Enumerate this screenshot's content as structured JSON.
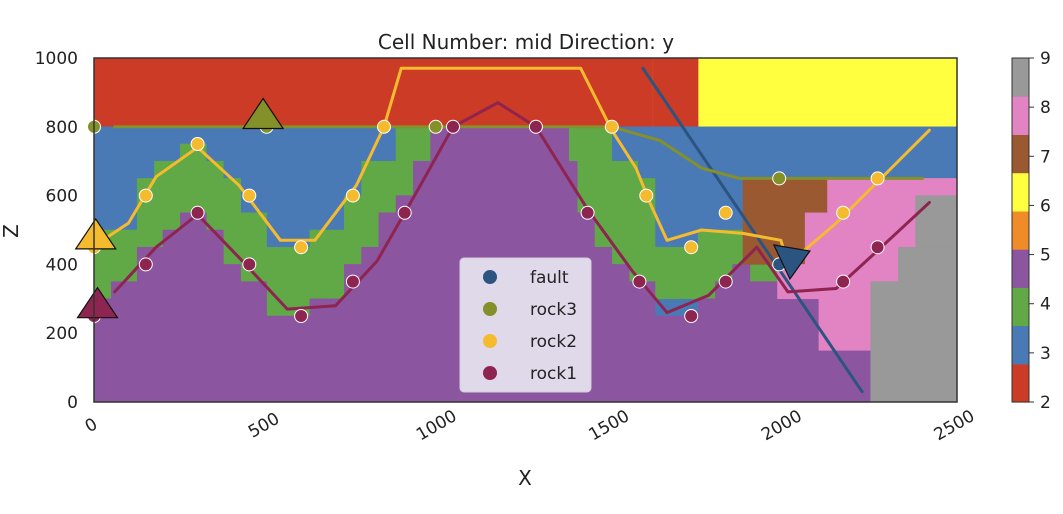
{
  "chart_data": {
    "type": "heatmap",
    "title": "Cell Number: mid Direction: y",
    "xlabel": "X",
    "ylabel": "Z",
    "xlim": [
      0,
      2500
    ],
    "ylim": [
      0,
      1000
    ],
    "x_ticks": [
      "0",
      "500",
      "1000",
      "1500",
      "2000",
      "2500"
    ],
    "y_ticks": [
      "0",
      "200",
      "400",
      "600",
      "800",
      "1000"
    ],
    "grid": false,
    "legend_position": "lower center",
    "colorbar": {
      "ticks": [
        "2",
        "3",
        "4",
        "5",
        "6",
        "7",
        "8",
        "9"
      ],
      "colors": [
        "#cc3b26",
        "#4a7ab5",
        "#61a847",
        "#8c55a0",
        "#f08c28",
        "#ffff40",
        "#9a5930",
        "#e283c4",
        "#999999"
      ]
    },
    "series": [
      {
        "name": "fault",
        "color": "#2b5480",
        "points": [
          [
            1985,
            400
          ]
        ],
        "line": [
          [
            1590,
            970
          ],
          [
            2225,
            30
          ]
        ],
        "orientation": [
          2010,
          410
        ]
      },
      {
        "name": "rock3",
        "color": "#84902a",
        "points": [
          [
            0,
            800
          ],
          [
            500,
            800
          ],
          [
            990,
            800
          ],
          [
            1985,
            650
          ]
        ],
        "line": [
          [
            60,
            800
          ],
          [
            1280,
            800
          ],
          [
            1500,
            800
          ],
          [
            1640,
            760
          ],
          [
            1760,
            680
          ],
          [
            1870,
            650
          ],
          [
            2400,
            650
          ]
        ],
        "orientation": [
          490,
          830
        ]
      },
      {
        "name": "rock2",
        "color": "#f5bb2e",
        "points": [
          [
            0,
            450
          ],
          [
            150,
            600
          ],
          [
            300,
            750
          ],
          [
            450,
            600
          ],
          [
            600,
            450
          ],
          [
            750,
            600
          ],
          [
            840,
            800
          ],
          [
            1500,
            800
          ],
          [
            1600,
            600
          ],
          [
            1730,
            450
          ],
          [
            1830,
            550
          ],
          [
            2170,
            550
          ],
          [
            2270,
            650
          ]
        ],
        "line": [
          [
            25,
            470
          ],
          [
            100,
            520
          ],
          [
            180,
            655
          ],
          [
            300,
            740
          ],
          [
            420,
            630
          ],
          [
            540,
            470
          ],
          [
            640,
            470
          ],
          [
            760,
            630
          ],
          [
            840,
            800
          ],
          [
            890,
            970
          ],
          [
            1410,
            970
          ],
          [
            1500,
            790
          ],
          [
            1570,
            680
          ],
          [
            1610,
            580
          ],
          [
            1660,
            470
          ],
          [
            1760,
            500
          ],
          [
            1880,
            490
          ],
          [
            1990,
            470
          ],
          [
            2010,
            400
          ],
          [
            2150,
            520
          ],
          [
            2270,
            640
          ],
          [
            2420,
            790
          ]
        ],
        "orientation": [
          5,
          480
        ]
      },
      {
        "name": "rock1",
        "color": "#8e2450",
        "points": [
          [
            0,
            250
          ],
          [
            150,
            400
          ],
          [
            300,
            550
          ],
          [
            450,
            400
          ],
          [
            600,
            250
          ],
          [
            750,
            350
          ],
          [
            900,
            550
          ],
          [
            1040,
            800
          ],
          [
            1280,
            800
          ],
          [
            1430,
            550
          ],
          [
            1580,
            350
          ],
          [
            1730,
            250
          ],
          [
            1830,
            350
          ],
          [
            2170,
            350
          ],
          [
            2270,
            450
          ]
        ],
        "line": [
          [
            60,
            320
          ],
          [
            180,
            450
          ],
          [
            300,
            545
          ],
          [
            420,
            420
          ],
          [
            560,
            270
          ],
          [
            700,
            280
          ],
          [
            820,
            410
          ],
          [
            940,
            620
          ],
          [
            1040,
            800
          ],
          [
            1170,
            870
          ],
          [
            1280,
            800
          ],
          [
            1430,
            560
          ],
          [
            1560,
            380
          ],
          [
            1660,
            260
          ],
          [
            1780,
            310
          ],
          [
            1920,
            450
          ],
          [
            2010,
            320
          ],
          [
            2150,
            330
          ],
          [
            2270,
            440
          ],
          [
            2420,
            580
          ]
        ],
        "orientation": [
          10,
          280
        ]
      }
    ],
    "legend": [
      {
        "label": "fault",
        "color": "#2b5480"
      },
      {
        "label": "rock3",
        "color": "#84902a"
      },
      {
        "label": "rock2",
        "color": "#f5bb2e"
      },
      {
        "label": "rock1",
        "color": "#8e2450"
      }
    ]
  }
}
